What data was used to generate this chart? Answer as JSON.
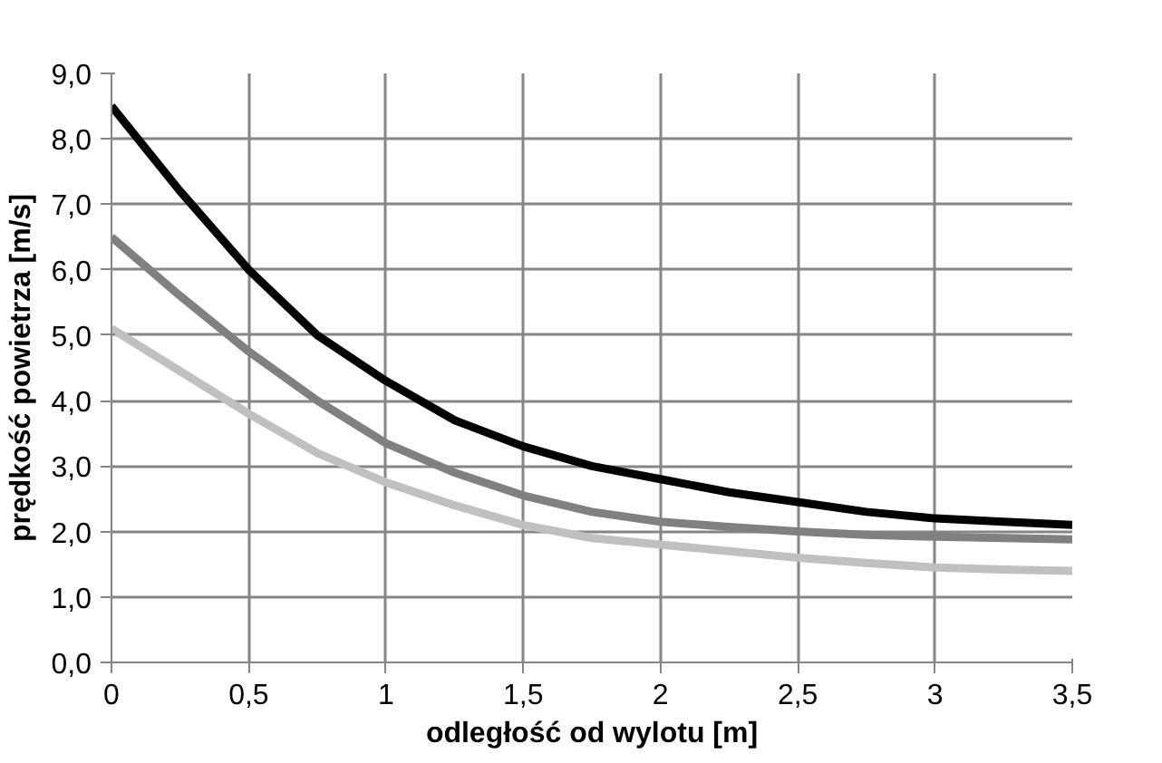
{
  "chart_data": {
    "type": "line",
    "xlabel": "odległość od wylotu [m]",
    "ylabel": "prędkość powietrza [m/s]",
    "x": [
      0,
      0.25,
      0.5,
      0.75,
      1,
      1.25,
      1.5,
      1.75,
      2,
      2.25,
      2.5,
      2.75,
      3,
      3.25,
      3.5
    ],
    "series": [
      {
        "color": "#000000",
        "values": [
          8.5,
          7.2,
          6.0,
          5.0,
          4.3,
          3.7,
          3.3,
          3.0,
          2.8,
          2.6,
          2.45,
          2.3,
          2.2,
          2.15,
          2.1
        ]
      },
      {
        "color": "#808080",
        "values": [
          6.5,
          5.6,
          4.75,
          4.0,
          3.35,
          2.9,
          2.55,
          2.3,
          2.15,
          2.07,
          2.0,
          1.95,
          1.92,
          1.9,
          1.88
        ]
      },
      {
        "color": "#c0c0c0",
        "values": [
          5.1,
          4.45,
          3.8,
          3.2,
          2.75,
          2.4,
          2.1,
          1.9,
          1.8,
          1.7,
          1.6,
          1.52,
          1.45,
          1.42,
          1.4
        ]
      }
    ],
    "xlim": [
      0,
      3.5
    ],
    "ylim": [
      0,
      9
    ],
    "xticks": [
      0,
      {
        "value": 0.5,
        "label": "0,5"
      },
      1,
      {
        "value": 1.5,
        "label": "1,5"
      },
      2,
      {
        "value": 2.5,
        "label": "2,5"
      },
      3,
      {
        "value": 3.5,
        "label": "3,5"
      }
    ],
    "yticks": [
      {
        "value": 0,
        "label": "0,0"
      },
      {
        "value": 1,
        "label": "1,0"
      },
      {
        "value": 2,
        "label": "2,0"
      },
      {
        "value": 3,
        "label": "3,0"
      },
      {
        "value": 4,
        "label": "4,0"
      },
      {
        "value": 5,
        "label": "5,0"
      },
      {
        "value": 6,
        "label": "6,0"
      },
      {
        "value": 7,
        "label": "7,0"
      },
      {
        "value": 8,
        "label": "8,0"
      },
      {
        "value": 9,
        "label": "9,0"
      }
    ],
    "grid": true,
    "marker": "none",
    "line_style": "solid"
  }
}
